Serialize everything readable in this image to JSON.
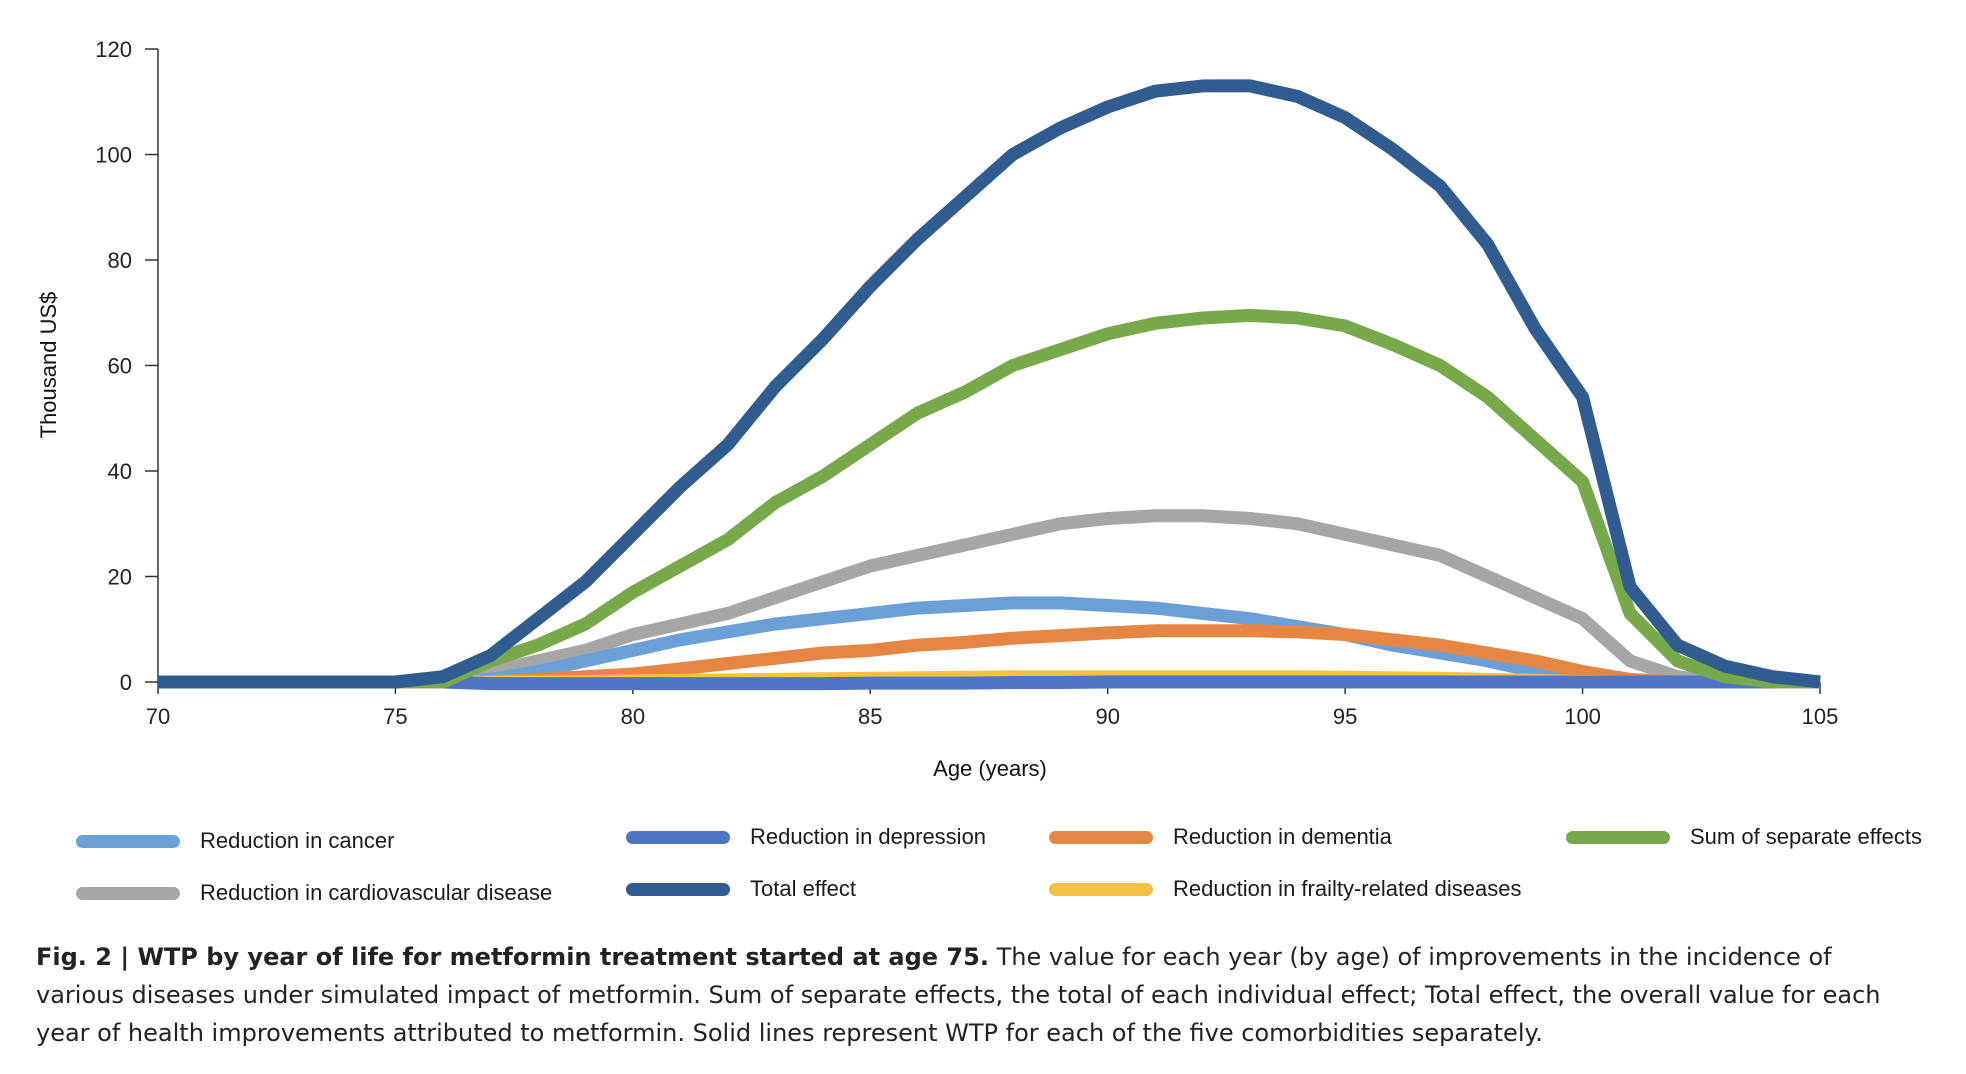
{
  "chart_data": {
    "type": "line",
    "title": "",
    "xlabel": "Age (years)",
    "ylabel": "Thousand US$",
    "xlim": [
      70,
      105
    ],
    "ylim": [
      0,
      120
    ],
    "xticks": [
      70,
      75,
      80,
      85,
      90,
      95,
      100,
      105
    ],
    "yticks": [
      0,
      20,
      40,
      60,
      80,
      100,
      120
    ],
    "grid": false,
    "legend_position": "bottom",
    "series": [
      {
        "name": "Reduction in cardiovascular disease",
        "color": "#a6a6a6",
        "x": [
          70,
          71,
          72,
          73,
          74,
          75,
          76,
          77,
          78,
          79,
          80,
          81,
          82,
          83,
          84,
          85,
          86,
          87,
          88,
          89,
          90,
          91,
          92,
          93,
          94,
          95,
          96,
          97,
          98,
          99,
          100,
          101,
          102,
          103,
          104,
          105
        ],
        "y": [
          0,
          0,
          0,
          0,
          0,
          0,
          0,
          2,
          4,
          6,
          9,
          11,
          13,
          16,
          19,
          22,
          24,
          26,
          28,
          30,
          31,
          31.5,
          31.5,
          31,
          30,
          28,
          26,
          24,
          20,
          16,
          12,
          4,
          1,
          0,
          0,
          0
        ]
      },
      {
        "name": "Reduction in cancer",
        "color": "#6a9fd8",
        "x": [
          70,
          71,
          72,
          73,
          74,
          75,
          76,
          77,
          78,
          79,
          80,
          81,
          82,
          83,
          84,
          85,
          86,
          87,
          88,
          89,
          90,
          91,
          92,
          93,
          94,
          95,
          96,
          97,
          98,
          99,
          100,
          101,
          102,
          103,
          104,
          105
        ],
        "y": [
          0,
          0,
          0,
          0,
          0,
          0,
          0,
          0.5,
          2,
          4,
          6,
          8,
          9.5,
          11,
          12,
          13,
          14,
          14.5,
          15,
          15,
          14.5,
          14,
          13,
          12,
          10.5,
          9,
          7,
          5.5,
          4,
          2,
          0,
          0,
          0,
          0,
          0,
          0
        ]
      },
      {
        "name": "Reduction in dementia",
        "color": "#e58743",
        "x": [
          70,
          71,
          72,
          73,
          74,
          75,
          76,
          77,
          78,
          79,
          80,
          81,
          82,
          83,
          84,
          85,
          86,
          87,
          88,
          89,
          90,
          91,
          92,
          93,
          94,
          95,
          96,
          97,
          98,
          99,
          100,
          101,
          102,
          103,
          104,
          105
        ],
        "y": [
          0,
          0,
          0,
          0,
          0,
          0,
          0,
          0,
          0.5,
          1,
          1.5,
          2.5,
          3.5,
          4.5,
          5.5,
          6,
          7,
          7.5,
          8.3,
          8.8,
          9.3,
          9.7,
          9.7,
          9.7,
          9.5,
          9,
          8,
          7,
          5.5,
          4,
          2,
          0.5,
          0,
          0,
          0,
          0
        ]
      },
      {
        "name": "Reduction in frailty-related diseases",
        "color": "#f5c143",
        "x": [
          70,
          71,
          72,
          73,
          74,
          75,
          76,
          77,
          78,
          79,
          80,
          81,
          82,
          83,
          84,
          85,
          86,
          87,
          88,
          89,
          90,
          91,
          92,
          93,
          94,
          95,
          96,
          97,
          98,
          99,
          100,
          101,
          102,
          103,
          104,
          105
        ],
        "y": [
          0,
          0,
          0,
          0,
          0,
          0,
          0,
          0,
          0,
          0.1,
          0.2,
          0.3,
          0.4,
          0.5,
          0.6,
          0.7,
          0.8,
          0.9,
          1,
          1,
          1,
          1,
          1,
          1,
          1,
          0.9,
          0.8,
          0.7,
          0.5,
          0.3,
          0.1,
          0,
          0,
          0,
          0,
          0
        ]
      },
      {
        "name": "Reduction in depression",
        "color": "#4f74c6",
        "x": [
          70,
          71,
          72,
          73,
          74,
          75,
          76,
          77,
          78,
          79,
          80,
          81,
          82,
          83,
          84,
          85,
          86,
          87,
          88,
          89,
          90,
          91,
          92,
          93,
          94,
          95,
          96,
          97,
          98,
          99,
          100,
          101,
          102,
          103,
          104,
          105
        ],
        "y": [
          0,
          0,
          0,
          0,
          0,
          0,
          0,
          -0.3,
          -0.3,
          -0.3,
          -0.3,
          -0.3,
          -0.3,
          -0.3,
          -0.3,
          -0.2,
          -0.2,
          -0.2,
          -0.1,
          -0.1,
          0,
          0,
          0,
          0,
          0,
          0,
          0,
          0,
          0,
          0,
          0,
          0,
          0,
          0,
          0,
          0
        ]
      },
      {
        "name": "Sum of separate effects",
        "color": "#77a94b",
        "x": [
          70,
          71,
          72,
          73,
          74,
          75,
          76,
          77,
          78,
          79,
          80,
          81,
          82,
          83,
          84,
          85,
          86,
          87,
          88,
          89,
          90,
          91,
          92,
          93,
          94,
          95,
          96,
          97,
          98,
          99,
          100,
          101,
          102,
          103,
          104,
          105
        ],
        "y": [
          0,
          0,
          0,
          0,
          0,
          0,
          0,
          4,
          7,
          11,
          17,
          22,
          27,
          34,
          39,
          45,
          51,
          55,
          60,
          63,
          66,
          68,
          69,
          69.5,
          69,
          67.5,
          64,
          60,
          54,
          46,
          38,
          13,
          4,
          1,
          0,
          0
        ]
      },
      {
        "name": "Total effect",
        "color": "#305c8f",
        "x": [
          70,
          71,
          72,
          73,
          74,
          75,
          76,
          77,
          78,
          79,
          80,
          81,
          82,
          83,
          84,
          85,
          86,
          87,
          88,
          89,
          90,
          91,
          92,
          93,
          94,
          95,
          96,
          97,
          98,
          99,
          100,
          101,
          102,
          103,
          104,
          105
        ],
        "y": [
          0,
          0,
          0,
          0,
          0,
          0,
          1,
          5,
          12,
          19,
          28,
          37,
          45,
          56,
          65,
          75,
          84,
          92,
          100,
          105,
          109,
          112,
          113,
          113,
          111,
          107,
          101,
          94,
          83,
          67,
          54,
          18,
          7,
          3,
          1,
          0
        ]
      }
    ]
  },
  "legend": [
    {
      "label": "Reduction in cancer",
      "color": "#6a9fd8"
    },
    {
      "label": "Reduction in depression",
      "color": "#4f74c6"
    },
    {
      "label": "Reduction in dementia",
      "color": "#e58743"
    },
    {
      "label": "Sum of separate effects",
      "color": "#77a94b"
    },
    {
      "label": "Reduction in cardiovascular disease",
      "color": "#a6a6a6"
    },
    {
      "label": "Total effect",
      "color": "#305c8f"
    },
    {
      "label": "Reduction in frailty-related diseases",
      "color": "#f5c143"
    }
  ],
  "caption": {
    "bold": "Fig. 2 | WTP by year of life for metformin treatment started at age 75.",
    "text": " The value for each year (by age) of improvements in the incidence of various diseases under simulated impact of metformin. Sum of separate effects, the total of each individual effect; Total effect, the overall value for each year of health improvements attributed to metformin. Solid lines represent WTP for each of the five comorbidities separately."
  }
}
